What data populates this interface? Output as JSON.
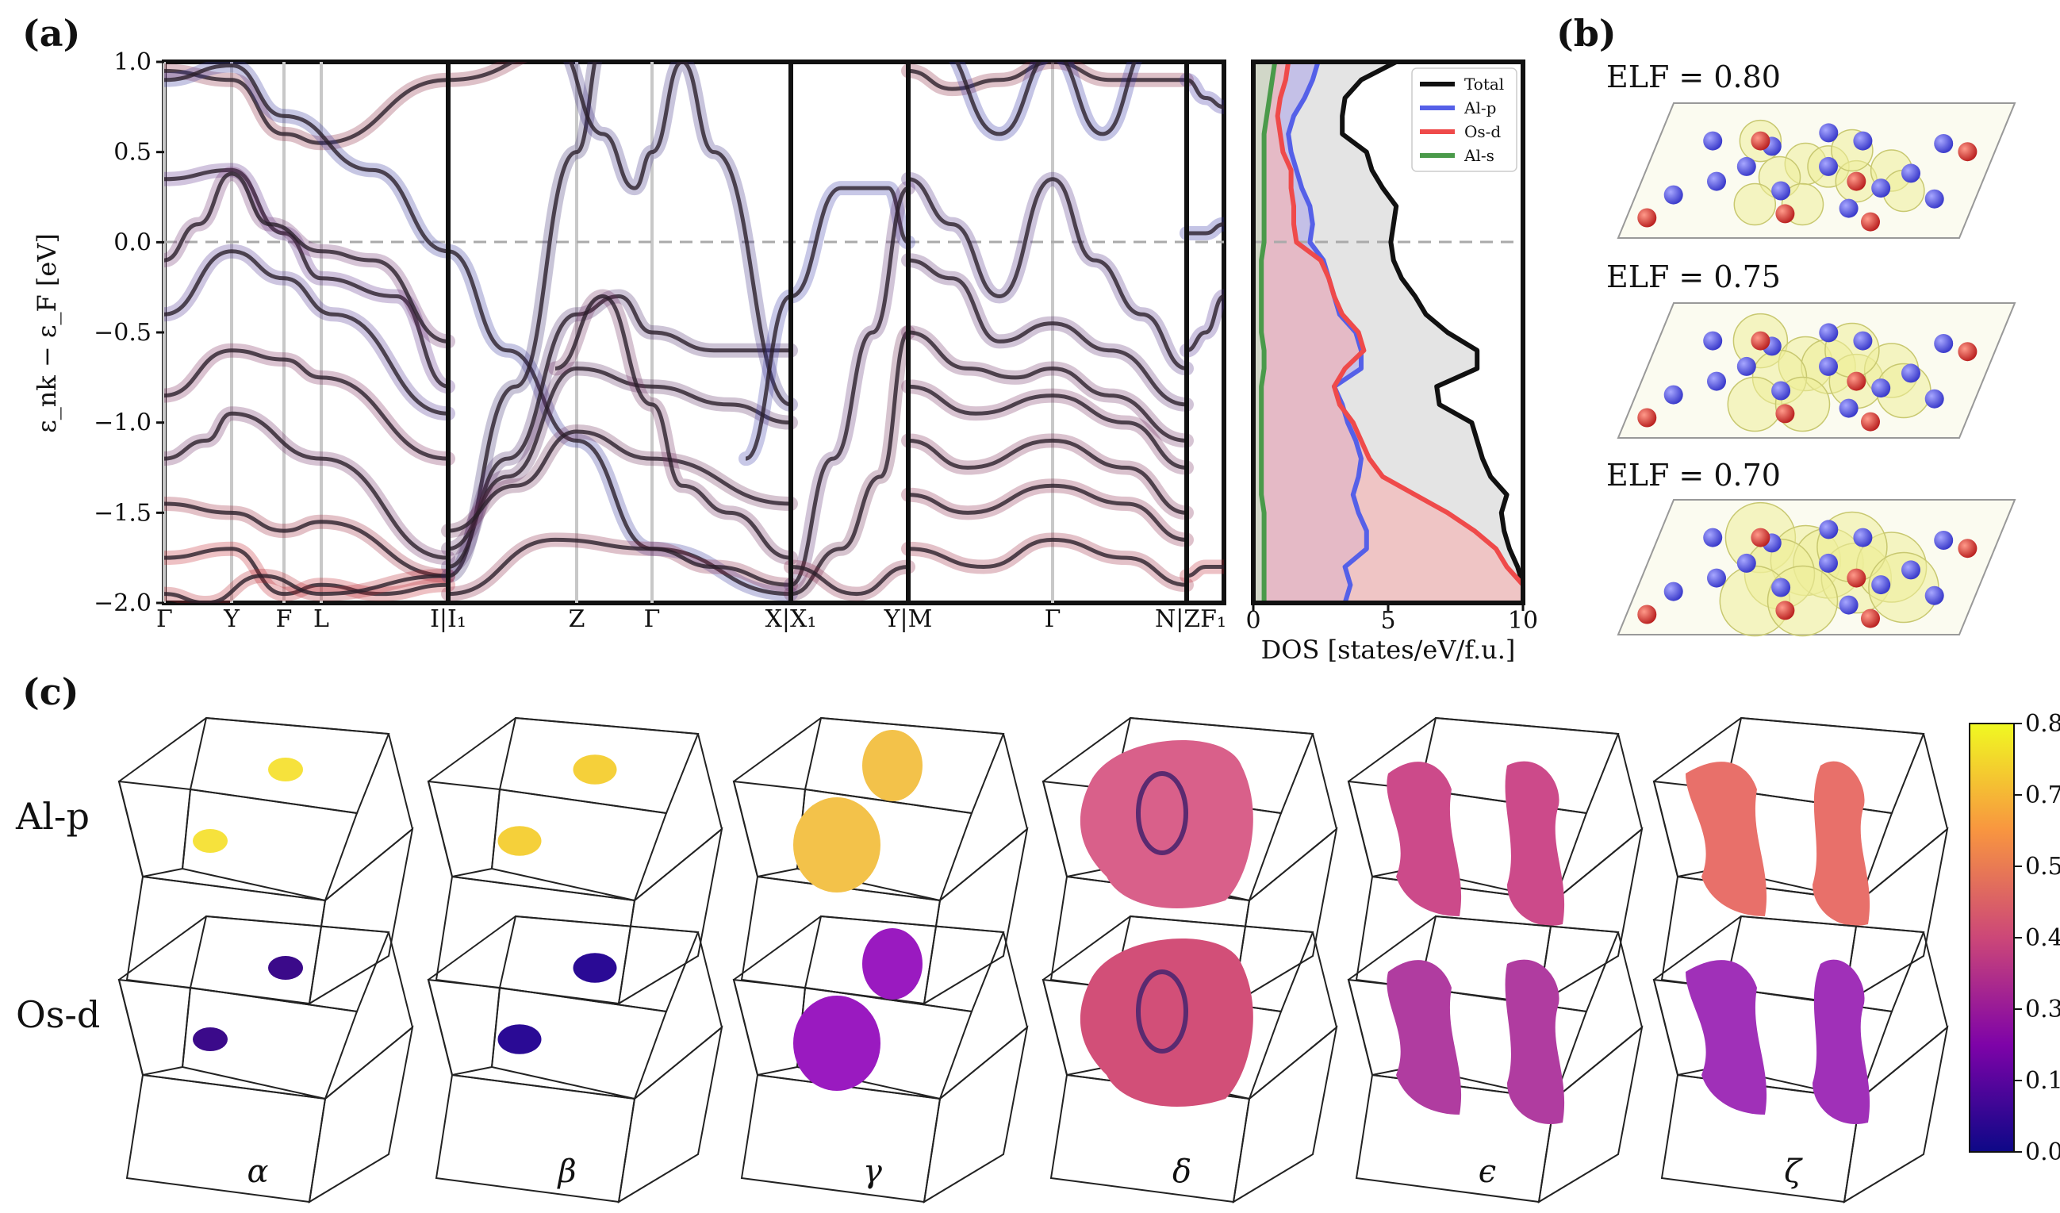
{
  "panels": {
    "a": "(a)",
    "b": "(b)",
    "c": "(c)"
  },
  "band_structure": {
    "ylabel": "ε_nk − ε_F [eV]",
    "yticks": [
      "1.0",
      "0.5",
      "0.0",
      "−0.5",
      "−1.0",
      "−1.5",
      "−2.0"
    ],
    "kpoints": [
      "Γ",
      "Y",
      "F",
      "L",
      "I|I₁",
      "Z",
      "Γ",
      "X|X₁",
      "Y|M",
      "Γ",
      "N|ZF₁"
    ]
  },
  "chart_data": {
    "type": "line",
    "title": "",
    "xlabel": "DOS [states/eV/f.u.]",
    "ylabel": "",
    "xlim": [
      0,
      10
    ],
    "ylim": [
      -2.0,
      1.0
    ],
    "xticks": [
      "0",
      "5",
      "10"
    ],
    "grid": false,
    "legend_position": "top-right",
    "energy": [
      1.0,
      0.9,
      0.8,
      0.7,
      0.6,
      0.5,
      0.4,
      0.3,
      0.2,
      0.1,
      0.0,
      -0.1,
      -0.2,
      -0.3,
      -0.4,
      -0.5,
      -0.6,
      -0.7,
      -0.8,
      -0.9,
      -1.0,
      -1.1,
      -1.2,
      -1.3,
      -1.4,
      -1.5,
      -1.6,
      -1.7,
      -1.8,
      -1.9,
      -2.0
    ],
    "series": [
      {
        "name": "Total",
        "color": "#111111",
        "values": [
          5.3,
          4.0,
          3.4,
          3.3,
          3.3,
          4.2,
          4.4,
          4.8,
          5.3,
          5.2,
          5.1,
          5.2,
          5.5,
          6.0,
          6.4,
          7.2,
          8.3,
          8.3,
          6.8,
          6.9,
          8.1,
          8.3,
          8.5,
          8.8,
          9.4,
          9.2,
          9.3,
          9.5,
          9.8,
          10.0,
          10.0
        ]
      },
      {
        "name": "Al-p",
        "color": "#5560e8",
        "values": [
          2.4,
          2.2,
          1.9,
          1.5,
          1.3,
          1.4,
          1.6,
          1.8,
          2.1,
          2.2,
          2.1,
          2.6,
          2.8,
          3.0,
          3.2,
          3.8,
          4.0,
          4.0,
          3.0,
          3.3,
          3.5,
          3.8,
          4.0,
          3.9,
          3.7,
          3.9,
          4.2,
          4.2,
          3.4,
          3.6,
          3.4
        ]
      },
      {
        "name": "Os-d",
        "color": "#ef4a4a",
        "values": [
          1.3,
          1.2,
          1.0,
          0.9,
          1.0,
          1.1,
          1.4,
          1.4,
          1.5,
          1.5,
          1.6,
          2.5,
          2.8,
          3.0,
          3.3,
          3.9,
          4.1,
          3.4,
          3.0,
          3.2,
          3.7,
          4.0,
          4.3,
          4.8,
          6.0,
          7.2,
          8.2,
          9.0,
          9.4,
          10.0,
          10.0
        ]
      },
      {
        "name": "Al-s",
        "color": "#4a9a4a",
        "values": [
          0.8,
          0.7,
          0.6,
          0.5,
          0.4,
          0.4,
          0.4,
          0.4,
          0.4,
          0.4,
          0.4,
          0.3,
          0.3,
          0.3,
          0.3,
          0.3,
          0.4,
          0.4,
          0.3,
          0.3,
          0.3,
          0.3,
          0.3,
          0.3,
          0.3,
          0.4,
          0.4,
          0.4,
          0.4,
          0.4,
          0.4
        ]
      }
    ]
  },
  "elf": {
    "labels": [
      "ELF = 0.80",
      "ELF = 0.75",
      "ELF = 0.70"
    ]
  },
  "fermi_surfaces": {
    "row_labels": [
      "Al-p",
      "Os-d"
    ],
    "sheets": [
      "α",
      "β",
      "γ",
      "δ",
      "ϵ",
      "ζ"
    ],
    "colorbar_ticks": [
      "0.8",
      "0.7",
      "0.5",
      "0.4",
      "0.3",
      "0.1",
      "0.0"
    ]
  },
  "colors": {
    "al_atom": "#4d4de0",
    "os_atom": "#d42a2a",
    "elf_iso": "#f0f0a0"
  }
}
